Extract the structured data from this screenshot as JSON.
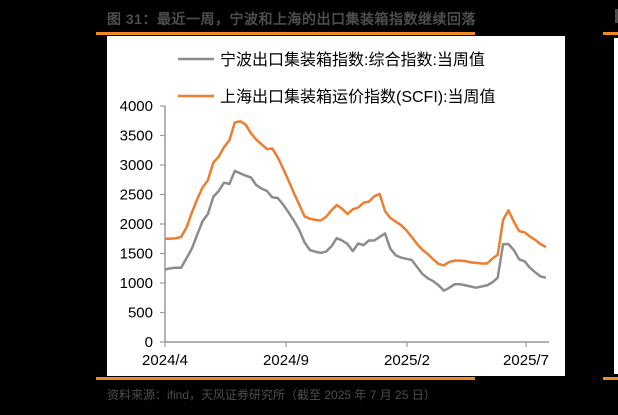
{
  "figure": {
    "title": "图 31：最近一周，宁波和上海的出口集装箱指数继续回落",
    "source": "资料来源：ifind，天风证券研究所（截至 2025 年 7 月 25 日）",
    "accent_color": "#f08a24"
  },
  "chart_data": {
    "type": "line",
    "title": "",
    "xlabel": "",
    "ylabel": "",
    "ylim": [
      0,
      4000
    ],
    "yticks": [
      0,
      500,
      1000,
      1500,
      2000,
      2500,
      3000,
      3500,
      4000
    ],
    "xtick_labels": [
      "2024/4",
      "2024/9",
      "2025/2",
      "2025/7"
    ],
    "grid": false,
    "legend_position": "top-left",
    "series": [
      {
        "name": "宁波出口集装箱指数:综合指数:当周值",
        "color": "#8c8c8c",
        "values": [
          1230,
          1250,
          1260,
          1260,
          1420,
          1580,
          1820,
          2050,
          2170,
          2460,
          2560,
          2700,
          2680,
          2900,
          2860,
          2820,
          2790,
          2660,
          2600,
          2560,
          2450,
          2440,
          2330,
          2200,
          2060,
          1900,
          1690,
          1560,
          1530,
          1510,
          1530,
          1620,
          1760,
          1720,
          1660,
          1540,
          1670,
          1640,
          1720,
          1720,
          1780,
          1840,
          1580,
          1470,
          1430,
          1410,
          1390,
          1270,
          1150,
          1080,
          1030,
          960,
          870,
          920,
          980,
          980,
          960,
          940,
          920,
          940,
          960,
          1010,
          1090,
          1660,
          1660,
          1560,
          1400,
          1370,
          1260,
          1180,
          1110,
          1090
        ]
      },
      {
        "name": "上海出口集装箱运价指数(SCFI):当周值",
        "color": "#ed7d31",
        "values": [
          1750,
          1750,
          1760,
          1780,
          1940,
          2190,
          2420,
          2620,
          2740,
          3040,
          3140,
          3300,
          3420,
          3720,
          3740,
          3690,
          3540,
          3430,
          3350,
          3270,
          3280,
          3130,
          2940,
          2740,
          2530,
          2330,
          2130,
          2090,
          2070,
          2060,
          2120,
          2230,
          2320,
          2260,
          2170,
          2250,
          2280,
          2360,
          2380,
          2470,
          2510,
          2220,
          2100,
          2040,
          1980,
          1890,
          1780,
          1660,
          1560,
          1490,
          1400,
          1320,
          1300,
          1360,
          1380,
          1380,
          1370,
          1350,
          1340,
          1330,
          1330,
          1410,
          1480,
          2070,
          2230,
          2040,
          1880,
          1860,
          1790,
          1730,
          1660,
          1610
        ]
      }
    ]
  }
}
